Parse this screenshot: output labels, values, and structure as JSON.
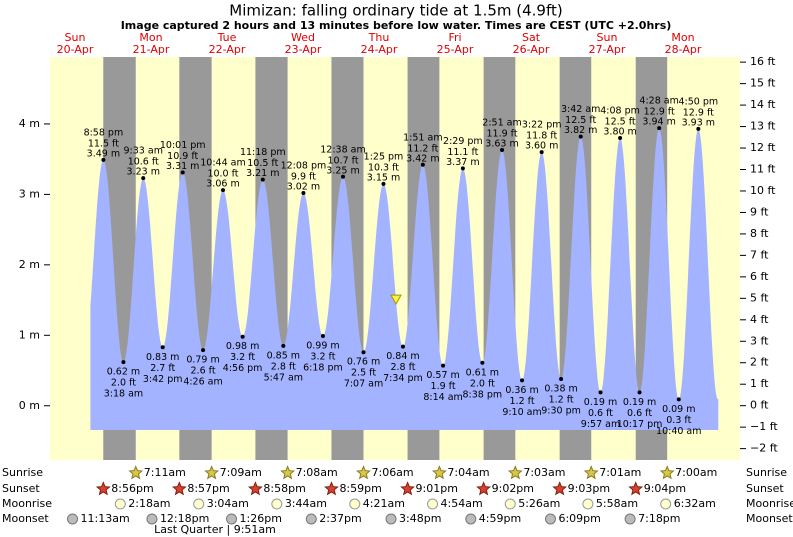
{
  "chart_data": {
    "type": "tide",
    "title": "Mimizan: falling  ordinary tide at 1.5m (4.9ft)",
    "subtitle": "Image captured 2 hours and 13 minutes before low water. Times are CEST (UTC +2.0hrs)",
    "ylim": [
      -0.77,
      4.95
    ],
    "yticks": [
      {
        "value": 0,
        "label": "0 m"
      },
      {
        "value": 1,
        "label": "1 m"
      },
      {
        "value": 2,
        "label": "2 m"
      },
      {
        "value": 3,
        "label": "3 m"
      },
      {
        "value": 4,
        "label": "4 m"
      }
    ],
    "y2lim": [
      -2.53,
      16.24
    ],
    "y2ticks": [
      {
        "value": -2,
        "label": "−2 ft"
      },
      {
        "value": -1,
        "label": "−1 ft"
      },
      {
        "value": 0,
        "label": "0 ft"
      },
      {
        "value": 1,
        "label": "1 ft"
      },
      {
        "value": 2,
        "label": "2 ft"
      },
      {
        "value": 3,
        "label": "3 ft"
      },
      {
        "value": 4,
        "label": "4 ft"
      },
      {
        "value": 5,
        "label": "5 ft"
      },
      {
        "value": 6,
        "label": "6 ft"
      },
      {
        "value": 7,
        "label": "7 ft"
      },
      {
        "value": 8,
        "label": "8 ft"
      },
      {
        "value": 9,
        "label": "9 ft"
      },
      {
        "value": 10,
        "label": "10 ft"
      },
      {
        "value": 11,
        "label": "11 ft"
      },
      {
        "value": 12,
        "label": "12 ft"
      },
      {
        "value": 13,
        "label": "13 ft"
      },
      {
        "value": 14,
        "label": "14 ft"
      },
      {
        "value": 15,
        "label": "15 ft"
      },
      {
        "value": 16,
        "label": "16 ft"
      }
    ],
    "now": {
      "value": 1.5,
      "date": "24-Apr"
    },
    "rows": {
      "sunrise": "Sunrise",
      "sunset": "Sunset",
      "moonrise": "Moonrise",
      "moonset": "Moonset"
    },
    "moon_phase": "Last Quarter | 9:51am",
    "days": [
      {
        "weekday": "Sun",
        "date": "20-Apr",
        "sunset": "8:56pm",
        "moonset": "11:13am",
        "tides": [
          {
            "time": "8:58 pm",
            "m": 3.49,
            "m_label": "3.49 m",
            "ft": 11.5,
            "ft_label": "11.5 ft"
          }
        ]
      },
      {
        "weekday": "Mon",
        "date": "21-Apr",
        "sunrise": "7:11am",
        "sunset": "8:57pm",
        "moonrise": "2:18am",
        "moonset": "12:18pm",
        "tides": [
          {
            "time": "3:18 am",
            "m": 0.62,
            "m_label": "0.62 m",
            "ft": 2.0,
            "ft_label": "2.0 ft"
          },
          {
            "time": "9:33 am",
            "m": 3.23,
            "m_label": "3.23 m",
            "ft": 10.6,
            "ft_label": "10.6 ft"
          },
          {
            "time": "3:42 pm",
            "m": 0.83,
            "m_label": "0.83 m",
            "ft": 2.7,
            "ft_label": "2.7 ft"
          },
          {
            "time": "10:01 pm",
            "m": 3.31,
            "m_label": "3.31 m",
            "ft": 10.9,
            "ft_label": "10.9 ft"
          }
        ]
      },
      {
        "weekday": "Tue",
        "date": "22-Apr",
        "sunrise": "7:09am",
        "sunset": "8:58pm",
        "moonrise": "3:04am",
        "moonset": "1:26pm",
        "tides": [
          {
            "time": "4:26 am",
            "m": 0.79,
            "m_label": "0.79 m",
            "ft": 2.6,
            "ft_label": "2.6 ft"
          },
          {
            "time": "10:44 am",
            "m": 3.06,
            "m_label": "3.06 m",
            "ft": 10.0,
            "ft_label": "10.0 ft"
          },
          {
            "time": "4:56 pm",
            "m": 0.98,
            "m_label": "0.98 m",
            "ft": 3.2,
            "ft_label": "3.2 ft"
          },
          {
            "time": "11:18 pm",
            "m": 3.21,
            "m_label": "3.21 m",
            "ft": 10.5,
            "ft_label": "10.5 ft"
          }
        ]
      },
      {
        "weekday": "Wed",
        "date": "23-Apr",
        "sunrise": "7:08am",
        "sunset": "8:59pm",
        "moonrise": "3:44am",
        "moonset": "2:37pm",
        "tides": [
          {
            "time": "5:47 am",
            "m": 0.85,
            "m_label": "0.85 m",
            "ft": 2.8,
            "ft_label": "2.8 ft"
          },
          {
            "time": "12:08 pm",
            "m": 3.02,
            "m_label": "3.02 m",
            "ft": 9.9,
            "ft_label": "9.9 ft"
          },
          {
            "time": "6:18 pm",
            "m": 0.99,
            "m_label": "0.99 m",
            "ft": 3.2,
            "ft_label": "3.2 ft"
          }
        ]
      },
      {
        "weekday": "Thu",
        "date": "24-Apr",
        "sunrise": "7:06am",
        "sunset": "9:01pm",
        "moonrise": "4:21am",
        "moonset": "3:48pm",
        "tides": [
          {
            "time": "12:38 am",
            "m": 3.25,
            "m_label": "3.25 m",
            "ft": 10.7,
            "ft_label": "10.7 ft"
          },
          {
            "time": "7:07 am",
            "m": 0.76,
            "m_label": "0.76 m",
            "ft": 2.5,
            "ft_label": "2.5 ft"
          },
          {
            "time": "1:25 pm",
            "m": 3.15,
            "m_label": "3.15 m",
            "ft": 10.3,
            "ft_label": "10.3 ft"
          },
          {
            "time": "7:34 pm",
            "m": 0.84,
            "m_label": "0.84 m",
            "ft": 2.8,
            "ft_label": "2.8 ft"
          }
        ]
      },
      {
        "weekday": "Fri",
        "date": "25-Apr",
        "sunrise": "7:04am",
        "sunset": "9:02pm",
        "moonrise": "4:54am",
        "moonset": "4:59pm",
        "tides": [
          {
            "time": "1:51 am",
            "m": 3.42,
            "m_label": "3.42 m",
            "ft": 11.2,
            "ft_label": "11.2 ft"
          },
          {
            "time": "8:14 am",
            "m": 0.57,
            "m_label": "0.57 m",
            "ft": 1.9,
            "ft_label": "1.9 ft"
          },
          {
            "time": "2:29 pm",
            "m": 3.37,
            "m_label": "3.37 m",
            "ft": 11.1,
            "ft_label": "11.1 ft"
          },
          {
            "time": "8:38 pm",
            "m": 0.61,
            "m_label": "0.61 m",
            "ft": 2.0,
            "ft_label": "2.0 ft"
          }
        ]
      },
      {
        "weekday": "Sat",
        "date": "26-Apr",
        "sunrise": "7:03am",
        "sunset": "9:03pm",
        "moonrise": "5:26am",
        "moonset": "6:09pm",
        "tides": [
          {
            "time": "2:51 am",
            "m": 3.63,
            "m_label": "3.63 m",
            "ft": 11.9,
            "ft_label": "11.9 ft"
          },
          {
            "time": "9:10 am",
            "m": 0.36,
            "m_label": "0.36 m",
            "ft": 1.2,
            "ft_label": "1.2 ft"
          },
          {
            "time": "3:22 pm",
            "m": 3.6,
            "m_label": "3.60 m",
            "ft": 11.8,
            "ft_label": "11.8 ft"
          },
          {
            "time": "9:30 pm",
            "m": 0.38,
            "m_label": "0.38 m",
            "ft": 1.2,
            "ft_label": "1.2 ft"
          }
        ]
      },
      {
        "weekday": "Sun",
        "date": "27-Apr",
        "sunrise": "7:01am",
        "sunset": "9:04pm",
        "moonrise": "5:58am",
        "moonset": "7:18pm",
        "tides": [
          {
            "time": "3:42 am",
            "m": 3.82,
            "m_label": "3.82 m",
            "ft": 12.5,
            "ft_label": "12.5 ft"
          },
          {
            "time": "9:57 am",
            "m": 0.19,
            "m_label": "0.19 m",
            "ft": 0.6,
            "ft_label": "0.6 ft"
          },
          {
            "time": "4:08 pm",
            "m": 3.8,
            "m_label": "3.80 m",
            "ft": 12.5,
            "ft_label": "12.5 ft"
          },
          {
            "time": "10:17 pm",
            "m": 0.19,
            "m_label": "0.19 m",
            "ft": 0.6,
            "ft_label": "0.6 ft"
          }
        ]
      },
      {
        "weekday": "Mon",
        "date": "28-Apr",
        "sunrise": "7:00am",
        "moonrise": "6:32am",
        "tides": [
          {
            "time": "4:28 am",
            "m": 3.94,
            "m_label": "3.94 m",
            "ft": 12.9,
            "ft_label": "12.9 ft"
          },
          {
            "time": "10:40 am",
            "m": 0.09,
            "m_label": "0.09 m",
            "ft": 0.3,
            "ft_label": "0.3 ft"
          },
          {
            "time": "4:50 pm",
            "m": 3.93,
            "m_label": "3.93 m",
            "ft": 12.9,
            "ft_label": "12.9 ft"
          }
        ]
      }
    ]
  }
}
